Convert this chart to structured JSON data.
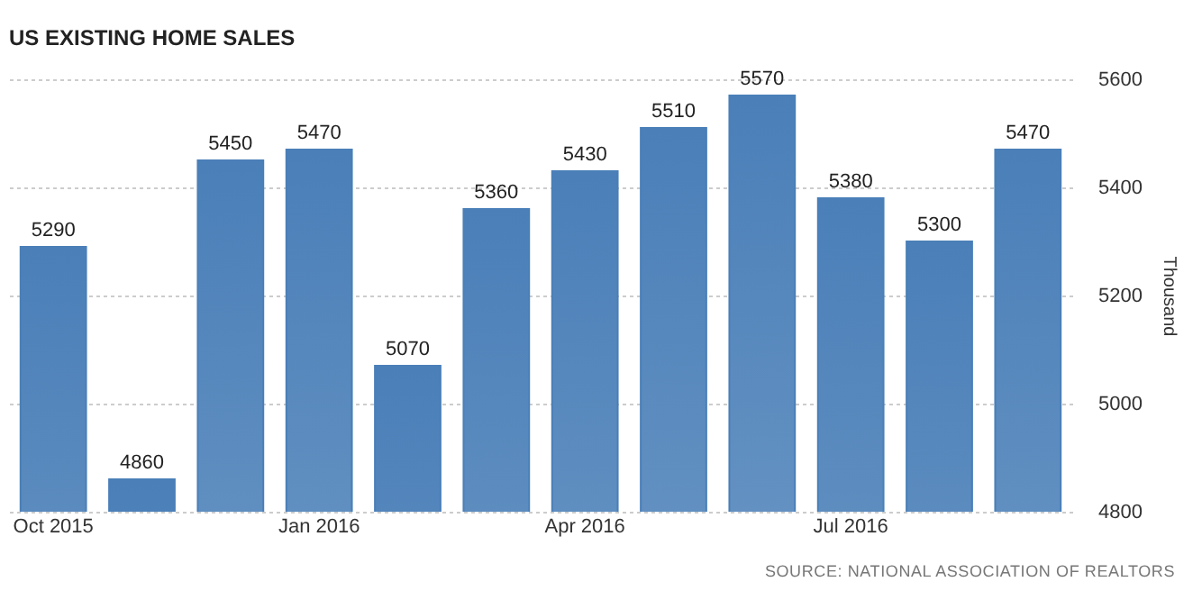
{
  "chart_data": {
    "type": "bar",
    "title": "US EXISTING HOME SALES",
    "ylabel": "Thousand",
    "categories": [
      "Oct 2015",
      null,
      null,
      "Jan 2016",
      null,
      null,
      "Apr 2016",
      null,
      null,
      "Jul 2016",
      null,
      null
    ],
    "values": [
      5290,
      4860,
      5450,
      5470,
      5070,
      5360,
      5430,
      5510,
      5570,
      5380,
      5300,
      5470
    ],
    "color": "#4a7fb8",
    "data_labels": true,
    "ylim": [
      4800,
      5600
    ],
    "yticks": [
      4800,
      5000,
      5200,
      5400,
      5600
    ],
    "grid": "y",
    "annotations": [
      "SOURCE: NATIONAL ASSOCIATION OF REALTORS"
    ]
  }
}
